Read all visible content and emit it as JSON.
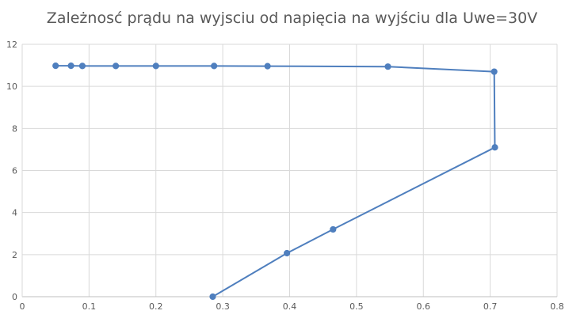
{
  "chart_data": {
    "type": "scatter",
    "title": "Zależnosć prądu na wyjsciu od napięcia na wyjściu dla Uwe=30V",
    "xlabel": "",
    "ylabel": "",
    "xlim": [
      0,
      0.8
    ],
    "ylim": [
      0,
      12
    ],
    "x_ticks": [
      0,
      0.1,
      0.2,
      0.3,
      0.4,
      0.5,
      0.6,
      0.7,
      0.8
    ],
    "x_tick_labels": [
      "0",
      "0.1",
      "0.2",
      "0.3",
      "0.4",
      "0.5",
      "0.6",
      "0.7",
      "0.8"
    ],
    "y_ticks": [
      0,
      2,
      4,
      6,
      8,
      10,
      12
    ],
    "y_tick_labels": [
      "0",
      "2",
      "4",
      "6",
      "8",
      "10",
      "12"
    ],
    "grid": true,
    "legend": "none",
    "series": [
      {
        "color": "#4f7fbe",
        "x": [
          0.05,
          0.073,
          0.09,
          0.14,
          0.2,
          0.287,
          0.367,
          0.547,
          0.706,
          0.707,
          0.465,
          0.396,
          0.285
        ],
        "y": [
          10.98,
          10.98,
          10.97,
          10.97,
          10.97,
          10.97,
          10.96,
          10.94,
          10.7,
          7.1,
          3.2,
          2.07,
          0.0
        ]
      }
    ]
  }
}
